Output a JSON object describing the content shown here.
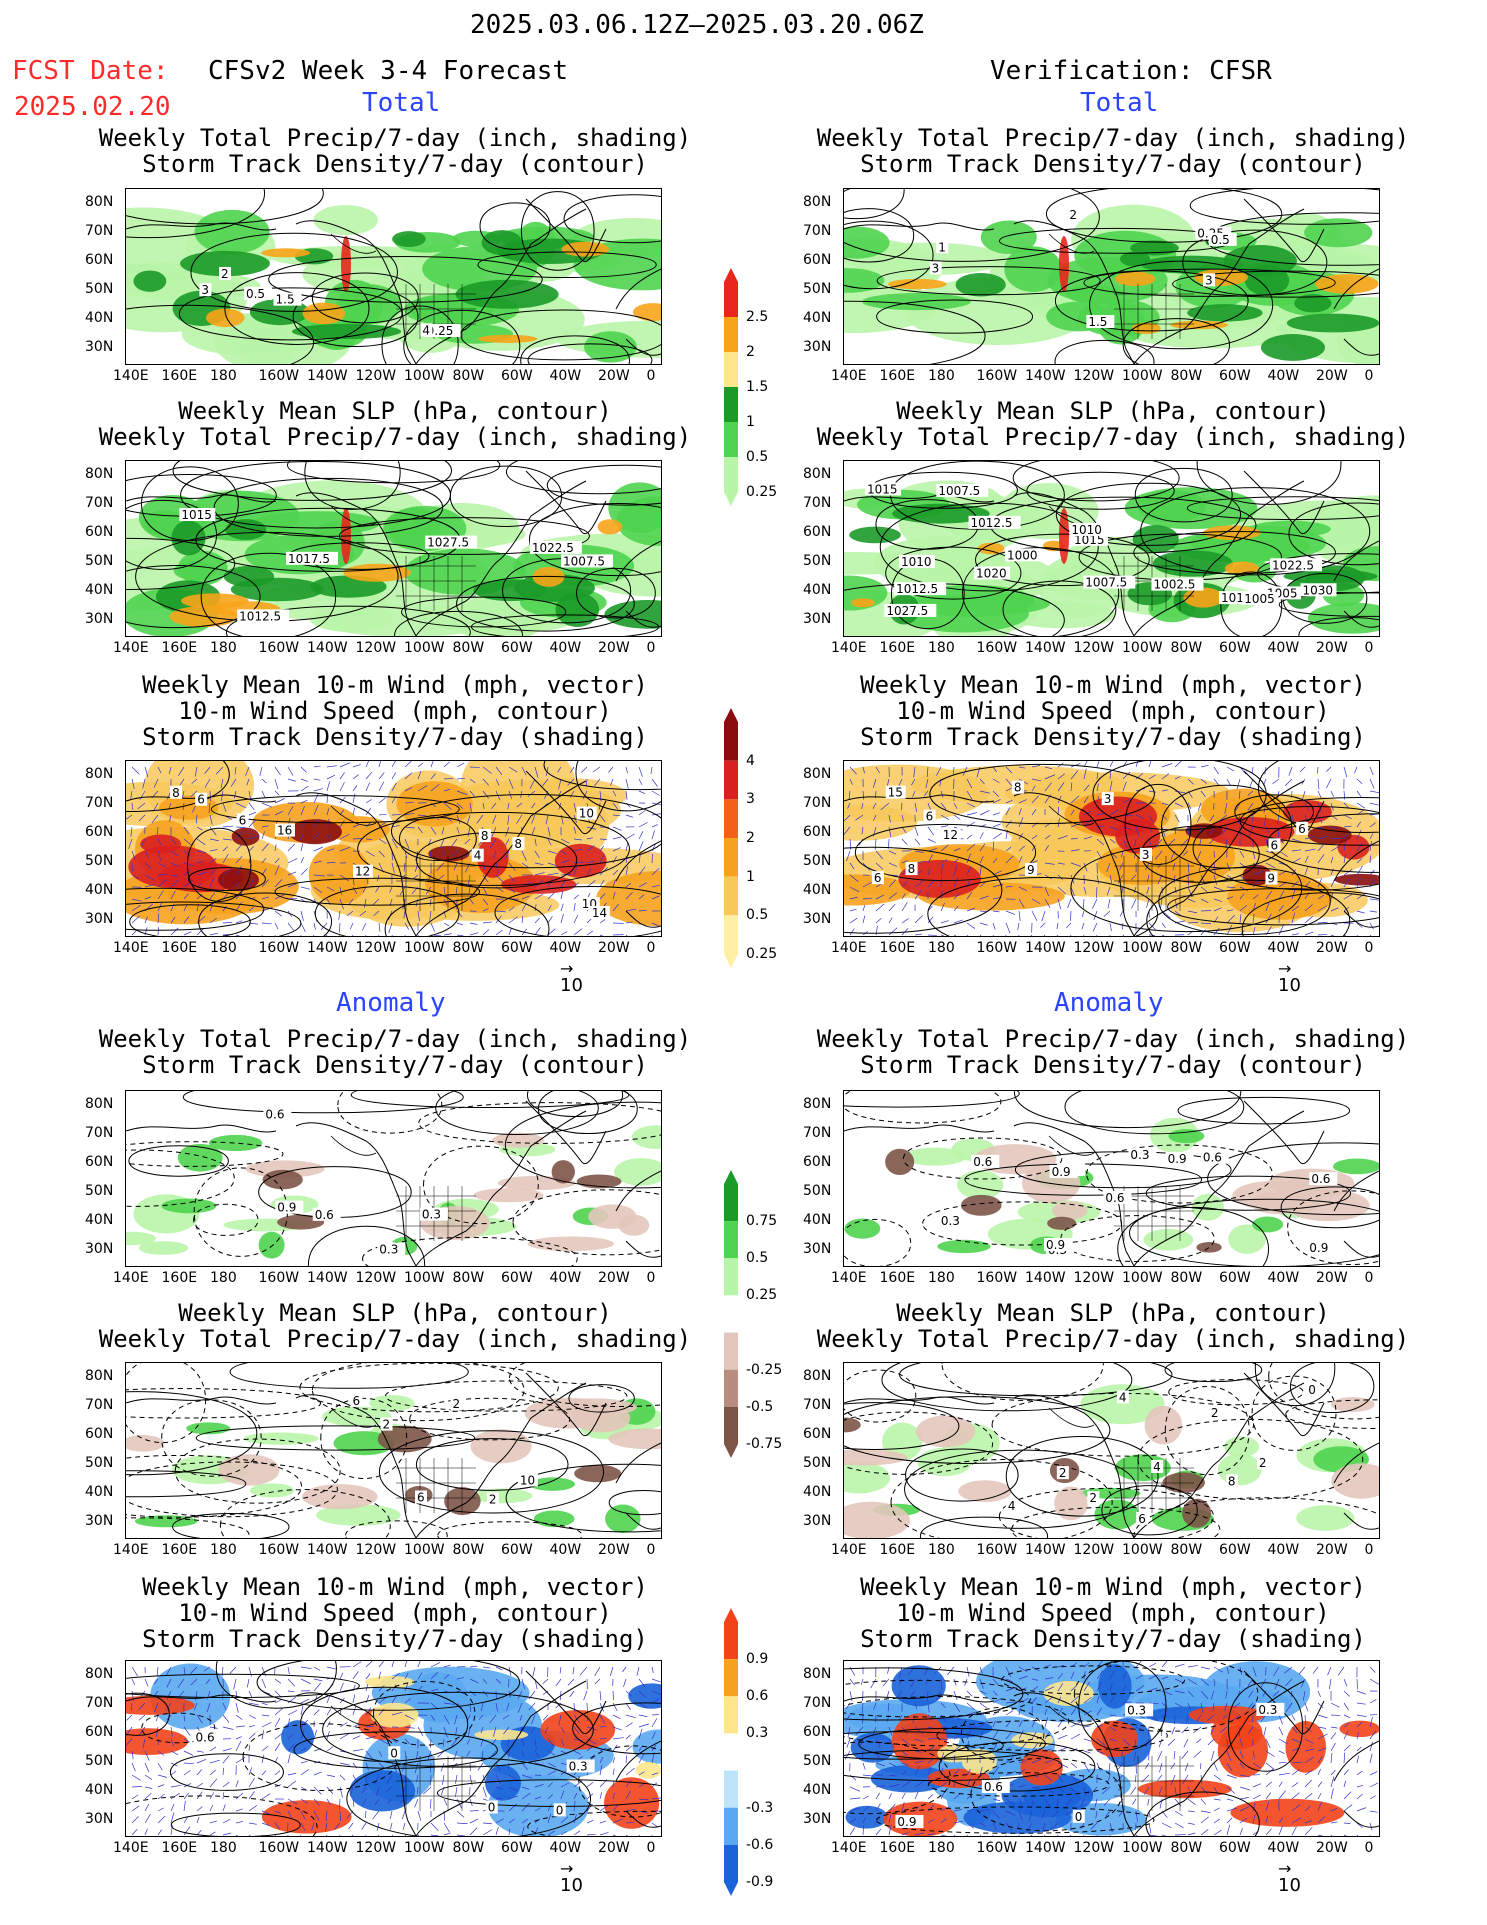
{
  "header": {
    "time_range": "2025.03.06.12Z–2025.03.20.06Z",
    "fcst_label": "FCST Date:",
    "fcst_date": "2025.02.20",
    "model_title": "CFSv2 Week 3-4 Forecast",
    "verification": "Verification: CFSR"
  },
  "sections": {
    "total": "Total",
    "anomaly": "Anomaly"
  },
  "panel_titles": {
    "precip_storm": [
      "Weekly Total Precip/7-day (inch, shading)",
      "Storm Track Density/7-day (contour)"
    ],
    "slp_precip": [
      "Weekly Mean SLP (hPa, contour)",
      "Weekly Total Precip/7-day (inch, shading)"
    ],
    "wind_storm": [
      "Weekly Mean 10-m Wind (mph, vector)",
      "10-m Wind Speed (mph, contour)",
      "Storm Track Density/7-day (shading)"
    ]
  },
  "axes": {
    "lat_labels": [
      "80N",
      "70N",
      "60N",
      "50N",
      "40N",
      "30N"
    ],
    "lon_labels": [
      "140E",
      "160E",
      "180",
      "160W",
      "140W",
      "120W",
      "100W",
      "80W",
      "60W",
      "40W",
      "20W",
      "0"
    ]
  },
  "vector_ref": "10",
  "colorbars": {
    "precip_total": {
      "labels": [
        "2.5",
        "2",
        "1.5",
        "1",
        "0.5",
        "0.25"
      ],
      "colors": [
        "#e8261b",
        "#f7a41a",
        "#fde68c",
        "#1b9a28",
        "#4fd44f",
        "#b9f5a9"
      ]
    },
    "storm_total": {
      "labels": [
        "4",
        "3",
        "2",
        "1",
        "0.5",
        "0.25"
      ],
      "colors": [
        "#8b0d0d",
        "#d92020",
        "#f2601a",
        "#f6a21f",
        "#f8c85a",
        "#fdf0a6"
      ]
    },
    "precip_anom": {
      "labels": [
        "0.75",
        "0.5",
        "0.25",
        "-0.25",
        "-0.5",
        "-0.75"
      ],
      "colors": [
        "#1b9a28",
        "#4fd44f",
        "#b9f5a9",
        "#ffffff",
        "#e3c6bb",
        "#b88d80",
        "#7d5448"
      ]
    },
    "storm_anom": {
      "labels": [
        "0.9",
        "0.6",
        "0.3",
        "-0.3",
        "-0.6",
        "-0.9"
      ],
      "colors": [
        "#f2421a",
        "#f6a21f",
        "#fde68c",
        "#ffffff",
        "#bde4f8",
        "#5aa8f0",
        "#1a63d8"
      ]
    }
  },
  "contour_labels": {
    "p1": [
      "0.25",
      "1.5",
      "4",
      "3",
      "2",
      "0.5"
    ],
    "p2": [
      "0.25",
      "2",
      "0.5",
      "1",
      "3",
      "3",
      "1.5"
    ],
    "p3": [
      "1022.5",
      "1027.5",
      "1007.5",
      "1012.5",
      "1017.5",
      "1015"
    ],
    "p4": [
      "1030",
      "1017.5",
      "1027.5",
      "1020",
      "1022.5",
      "1015",
      "1000",
      "1005",
      "1002.5",
      "1007.5",
      "1012.5",
      "1012.5",
      "1010",
      "1005",
      "1007.5",
      "1015",
      "1010"
    ],
    "p5": [
      "8",
      "10",
      "6",
      "16",
      "12",
      "10",
      "8",
      "14",
      "6",
      "4",
      "8"
    ],
    "p6": [
      "12",
      "8",
      "9",
      "8",
      "6",
      "9",
      "6",
      "15",
      "3",
      "6",
      "3",
      "6"
    ],
    "p7": [
      "0.9",
      "0.6",
      "0.3",
      "0.6",
      "0.3"
    ],
    "p8": [
      "0.3",
      "0.3",
      "0.9",
      "0.9",
      "0.3",
      "0.6",
      "0.9",
      "0.6",
      "0.3",
      "0.9",
      "0.6",
      "0.6"
    ],
    "p9": [
      "2",
      "6",
      "10",
      "6",
      "2",
      "2"
    ],
    "p10": [
      "4",
      "2",
      "0",
      "2",
      "4",
      "6",
      "8",
      "2",
      "4",
      "2"
    ],
    "p11": [
      "0",
      "0.3",
      "0.6",
      "0",
      "0"
    ],
    "p12": [
      "0.3",
      "0.9",
      "0.6",
      "0.3",
      "0"
    ]
  }
}
